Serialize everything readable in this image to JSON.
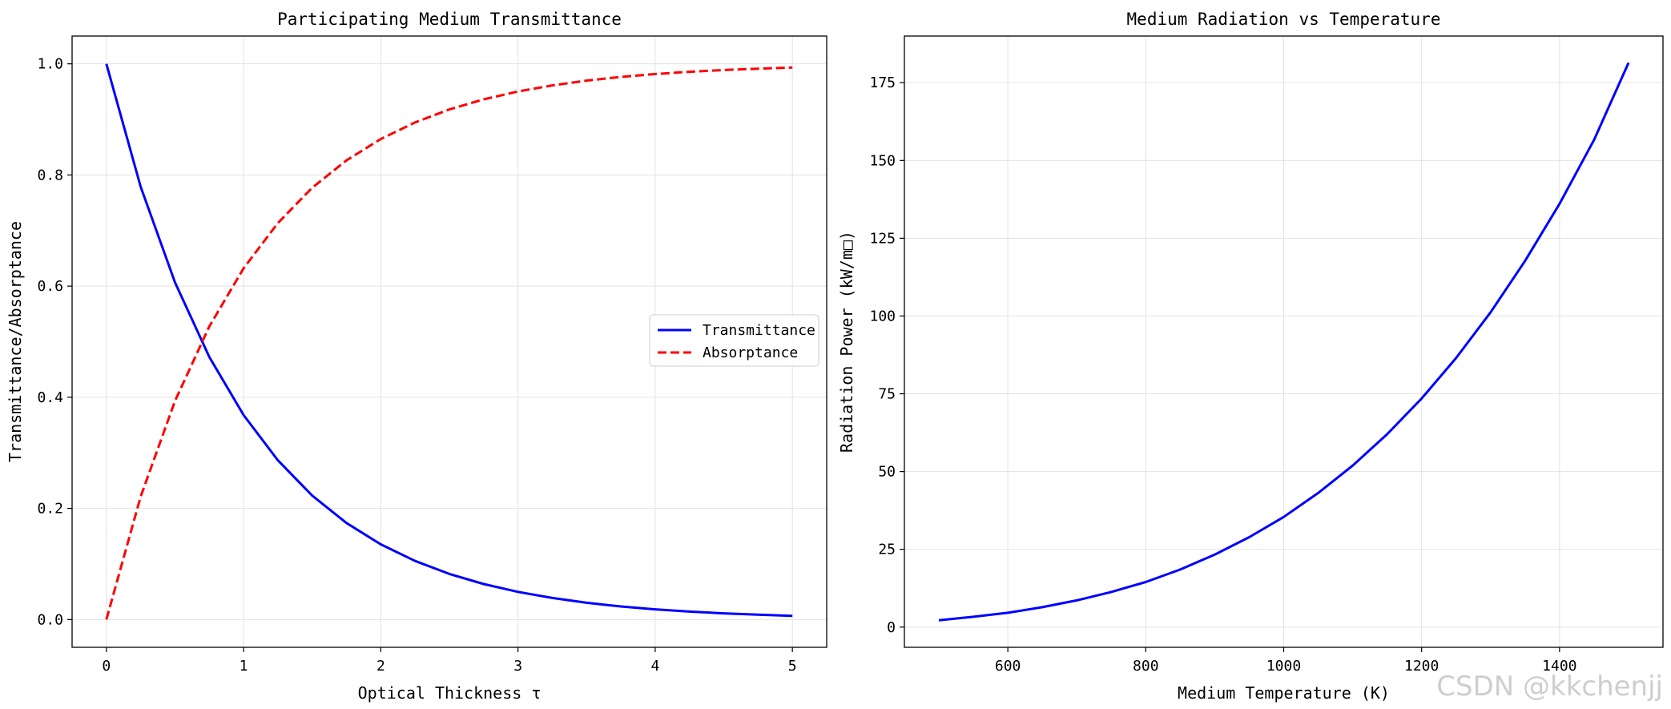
{
  "watermark": "CSDN @kkchenjj",
  "chart_data": [
    {
      "type": "line",
      "title": "Participating Medium Transmittance",
      "xlabel": "Optical Thickness τ",
      "ylabel": "Transmittance/Absorptance",
      "xlim": [
        -0.25,
        5.25
      ],
      "ylim": [
        -0.05,
        1.05
      ],
      "xticks": [
        0,
        1,
        2,
        3,
        4,
        5
      ],
      "xtick_labels": [
        "0",
        "1",
        "2",
        "3",
        "4",
        "5"
      ],
      "yticks": [
        0.0,
        0.2,
        0.4,
        0.6,
        0.8,
        1.0
      ],
      "ytick_labels": [
        "0.0",
        "0.2",
        "0.4",
        "0.6",
        "0.8",
        "1.0"
      ],
      "grid": true,
      "legend_position": "center-right",
      "x": [
        0,
        0.25,
        0.5,
        0.75,
        1,
        1.25,
        1.5,
        1.75,
        2,
        2.25,
        2.5,
        2.75,
        3,
        3.25,
        3.5,
        3.75,
        4,
        4.25,
        4.5,
        4.75,
        5
      ],
      "series": [
        {
          "name": "Transmittance",
          "color": "#0000ff",
          "style": "solid",
          "values": [
            1.0,
            0.7788,
            0.6065,
            0.4724,
            0.3679,
            0.2865,
            0.2231,
            0.1738,
            0.1353,
            0.1054,
            0.0821,
            0.0639,
            0.0498,
            0.0388,
            0.0302,
            0.0235,
            0.0183,
            0.0143,
            0.0111,
            0.0087,
            0.0067
          ]
        },
        {
          "name": "Absorptance",
          "color": "#ff0000",
          "style": "dashed",
          "values": [
            0.0,
            0.2212,
            0.3935,
            0.5276,
            0.6321,
            0.7135,
            0.7769,
            0.8262,
            0.8647,
            0.8946,
            0.9179,
            0.9361,
            0.9502,
            0.9612,
            0.9698,
            0.9765,
            0.9817,
            0.9857,
            0.9889,
            0.9913,
            0.9933
          ]
        }
      ]
    },
    {
      "type": "line",
      "title": "Medium Radiation vs Temperature",
      "xlabel": "Medium Temperature (K)",
      "ylabel": "Radiation Power (kW/m□)",
      "xlim": [
        450,
        1550
      ],
      "ylim": [
        -6.5,
        190
      ],
      "xticks": [
        600,
        800,
        1000,
        1200,
        1400
      ],
      "xtick_labels": [
        "600",
        "800",
        "1000",
        "1200",
        "1400"
      ],
      "yticks": [
        0,
        25,
        50,
        75,
        100,
        125,
        150,
        175
      ],
      "ytick_labels": [
        "0",
        "25",
        "50",
        "75",
        "100",
        "125",
        "150",
        "175"
      ],
      "grid": true,
      "x": [
        500,
        550,
        600,
        650,
        700,
        750,
        800,
        850,
        900,
        950,
        1000,
        1050,
        1100,
        1150,
        1200,
        1250,
        1300,
        1350,
        1400,
        1450,
        1500
      ],
      "series": [
        {
          "name": "Radiation Power",
          "color": "#0000ff",
          "style": "solid",
          "values": [
            2.2,
            3.3,
            4.6,
            6.4,
            8.6,
            11.3,
            14.5,
            18.5,
            23.3,
            28.9,
            35.4,
            43.1,
            51.9,
            62.0,
            73.5,
            86.5,
            101.2,
            117.7,
            136.1,
            156.6,
            181.4
          ]
        }
      ]
    }
  ]
}
